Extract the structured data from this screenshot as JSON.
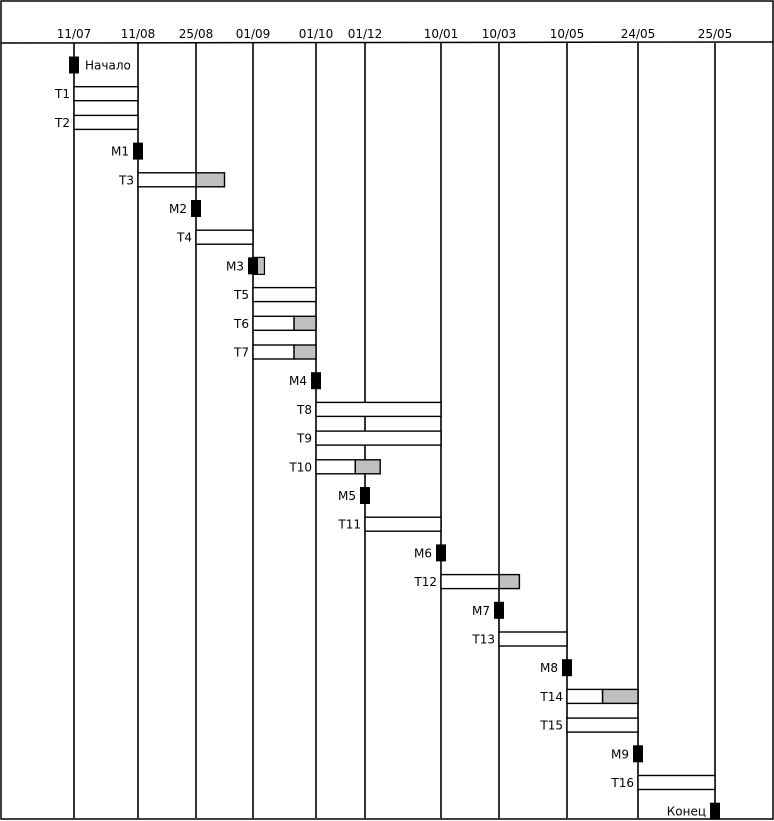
{
  "timeline": {
    "dates": [
      "11/07",
      "11/08",
      "25/08",
      "01/09",
      "01/10",
      "01/12",
      "10/01",
      "10/03",
      "10/05",
      "24/05",
      "25/05"
    ]
  },
  "colors": {
    "bar_fill": "#ffffff",
    "slack_fill": "#c0c0c0",
    "milestone_fill": "#000000",
    "line": "#000000"
  },
  "items": [
    {
      "label": "Начало",
      "kind": "milestone",
      "label_side": "right",
      "col": 0
    },
    {
      "label": "T1",
      "kind": "task",
      "start": 0,
      "end": 1
    },
    {
      "label": "T2",
      "kind": "task",
      "start": 0,
      "end": 1
    },
    {
      "label": "M1",
      "kind": "milestone",
      "col": 1
    },
    {
      "label": "T3",
      "kind": "task",
      "start": 1,
      "end": 2,
      "slack_to": 2.5
    },
    {
      "label": "M2",
      "kind": "milestone",
      "col": 2
    },
    {
      "label": "T4",
      "kind": "task",
      "start": 2,
      "end": 3
    },
    {
      "label": "M3",
      "kind": "milestone",
      "col": 3,
      "slack_to": 3.15
    },
    {
      "label": "T5",
      "kind": "task",
      "start": 3,
      "end": 4
    },
    {
      "label": "T6",
      "kind": "task",
      "start": 3,
      "end": 3.65,
      "slack_to": 4
    },
    {
      "label": "T7",
      "kind": "task",
      "start": 3,
      "end": 3.65,
      "slack_to": 4
    },
    {
      "label": "M4",
      "kind": "milestone",
      "col": 4
    },
    {
      "label": "T8",
      "kind": "task",
      "start": 4,
      "end": 6
    },
    {
      "label": "T9",
      "kind": "task",
      "start": 4,
      "end": 6
    },
    {
      "label": "T10",
      "kind": "task",
      "start": 4,
      "end": 4.8,
      "slack_to": 5.2
    },
    {
      "label": "M5",
      "kind": "milestone",
      "col": 5
    },
    {
      "label": "T11",
      "kind": "task",
      "start": 5,
      "end": 6
    },
    {
      "label": "M6",
      "kind": "milestone",
      "col": 6
    },
    {
      "label": "T12",
      "kind": "task",
      "start": 6,
      "end": 7,
      "slack_to": 7.3
    },
    {
      "label": "M7",
      "kind": "milestone",
      "col": 7
    },
    {
      "label": "T13",
      "kind": "task",
      "start": 7,
      "end": 8
    },
    {
      "label": "M8",
      "kind": "milestone",
      "col": 8
    },
    {
      "label": "T14",
      "kind": "task",
      "start": 8,
      "end": 8.5,
      "slack_to": 9
    },
    {
      "label": "T15",
      "kind": "task",
      "start": 8,
      "end": 9
    },
    {
      "label": "M9",
      "kind": "milestone",
      "col": 9
    },
    {
      "label": "T16",
      "kind": "task",
      "start": 9,
      "end": 10
    },
    {
      "label": "Конец",
      "kind": "milestone",
      "col": 10
    }
  ]
}
